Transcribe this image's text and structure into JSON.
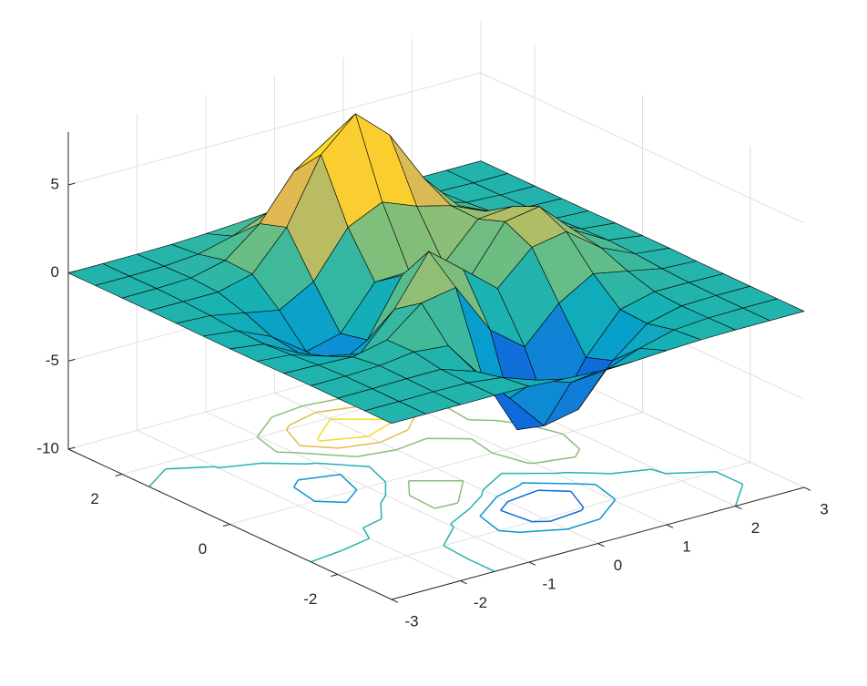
{
  "chart_data": {
    "type": "surface",
    "x": [
      -3,
      -2.5,
      -2,
      -1.5,
      -1,
      -0.5,
      0,
      0.5,
      1,
      1.5,
      2,
      2.5,
      3
    ],
    "y": [
      -3,
      -2.5,
      -2,
      -1.5,
      -1,
      -0.5,
      0,
      0.5,
      1,
      1.5,
      2,
      2.5,
      3
    ],
    "z": [
      [
        0,
        0,
        0,
        0,
        -0.03,
        -0.14,
        -0.24,
        -0.22,
        -0.11,
        -0.03,
        0,
        0,
        0
      ],
      [
        0,
        0,
        0.02,
        0,
        -0.23,
        -0.91,
        -1.57,
        -1.41,
        -0.69,
        -0.18,
        -0.03,
        0,
        0
      ],
      [
        0,
        0.01,
        0.05,
        0.05,
        -0.59,
        -2.64,
        -4.75,
        -4.34,
        -2.1,
        -0.53,
        -0.06,
        0,
        0
      ],
      [
        0,
        0.01,
        0.08,
        0.33,
        0.15,
        -2.19,
        -5.68,
        -5.76,
        -2.63,
        -0.44,
        0.04,
        0.03,
        0
      ],
      [
        -0.01,
        -0.06,
        -0.13,
        0.3,
        1.86,
        2.22,
        -0.72,
        -2.22,
        -0.27,
        0.88,
        0.5,
        0.11,
        0.01
      ],
      [
        -0.03,
        -0.2,
        -0.8,
        -1.21,
        0.8,
        3.55,
        2,
        0.39,
        2.2,
        2.56,
        1.12,
        0.24,
        0.03
      ],
      [
        -0.04,
        -0.3,
        -1.33,
        -2.77,
        -1.65,
        1.48,
        0.98,
        0.37,
        2.94,
        3.27,
        1.41,
        0.3,
        0.03
      ],
      [
        -0.03,
        -0.25,
        -1.12,
        -2.49,
        -2,
        0.39,
        0.46,
        0.38,
        2.38,
        2.56,
        1.09,
        0.23,
        0.03
      ],
      [
        -0.01,
        -0.11,
        -0.48,
        -0.86,
        0.23,
        2.79,
        3.69,
        2.93,
        2.43,
        1.58,
        0.58,
        0.11,
        0.01
      ],
      [
        0,
        -0.02,
        -0.01,
        0.48,
        2.61,
        6.2,
        8,
        6.25,
        3.26,
        1.19,
        0.29,
        0.05,
        0
      ],
      [
        0,
        0.01,
        0.08,
        0.55,
        2.1,
        4.55,
        5.85,
        4.56,
        2.21,
        0.68,
        0.13,
        0.02,
        0
      ],
      [
        0,
        0,
        0.03,
        0.19,
        0.69,
        1.47,
        1.88,
        1.47,
        0.7,
        0.2,
        0.04,
        0,
        0
      ],
      [
        0,
        0,
        0.01,
        0.03,
        0.11,
        0.23,
        0.3,
        0.23,
        0.11,
        0.03,
        0.01,
        0,
        0
      ]
    ],
    "contour_levels": [
      -6,
      -4,
      -2,
      0,
      2,
      4,
      6,
      8
    ],
    "colormap": [
      "#352a87",
      "#0f5cdd",
      "#127dd8",
      "#079ccf",
      "#15b1b4",
      "#59bd8c",
      "#a5be6b",
      "#e1b952",
      "#fcce2e",
      "#f5e31e",
      "#f9fb0e"
    ],
    "edge_color": "#000000",
    "xlim": [
      -3,
      3
    ],
    "ylim": [
      -3,
      3
    ],
    "zlim": [
      -10,
      8
    ],
    "xticks": [
      -3,
      -2,
      -1,
      0,
      1,
      2,
      3
    ],
    "yticks": [
      -2,
      0,
      2
    ],
    "zticks": [
      -10,
      -5,
      0,
      5
    ],
    "grid": true
  }
}
